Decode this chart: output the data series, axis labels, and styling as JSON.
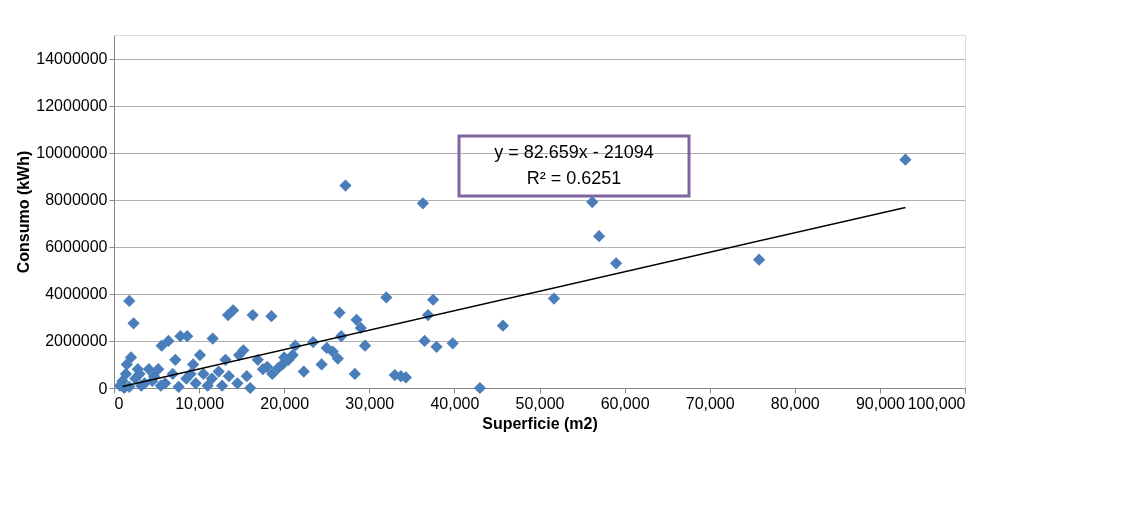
{
  "chart_data": {
    "type": "scatter",
    "xlabel": "Superficie (m2)",
    "ylabel": "Consumo (kWh)",
    "annotations": [
      "y = 82.659x - 21094",
      "R² = 0.6251"
    ],
    "xlim": [
      0,
      100000
    ],
    "xticks": [
      0,
      {
        "value": 10000,
        "label": "10,000"
      },
      {
        "value": 20000,
        "label": "20,000"
      },
      {
        "value": 30000,
        "label": "30,000"
      },
      {
        "value": 40000,
        "label": "40,000"
      },
      {
        "value": 50000,
        "label": "50,000"
      },
      {
        "value": 60000,
        "label": "60,000"
      },
      {
        "value": 70000,
        "label": "70,000"
      },
      {
        "value": 80000,
        "label": "80,000"
      },
      {
        "value": 90000,
        "label": "90,000"
      },
      {
        "value": 100000,
        "label": "100,000"
      }
    ],
    "ylim": [
      0,
      15000000
    ],
    "yticks": [
      0,
      2000000,
      4000000,
      6000000,
      8000000,
      10000000,
      12000000,
      14000000
    ],
    "grid": "y",
    "marker": "diamond",
    "series": [
      {
        "color": "#4a7ebb",
        "x": [
          93000,
          75800,
          59000,
          57000,
          56200,
          51700,
          45700,
          43000,
          39800,
          37900,
          37500,
          36900,
          36500,
          36300,
          34300,
          33700,
          33000,
          32000,
          29500,
          29000,
          28500,
          28300,
          27200,
          26700,
          26500,
          26300,
          25700,
          25000,
          24400,
          23400,
          22300,
          21300,
          21000,
          20500,
          19800,
          19300,
          18500,
          18600,
          18000,
          16900,
          16300,
          16000,
          15600,
          15200,
          14700,
          14500,
          14000,
          13400,
          13100,
          12700,
          12300,
          11600,
          11000,
          10500,
          10100,
          9600,
          9300,
          8600,
          7800,
          7600,
          7200,
          6900,
          6400,
          6000,
          5600,
          5200,
          4700,
          4100,
          3600,
          3000,
          2300,
          1800,
          2000,
          1500,
          1000,
          700,
          1200,
          2500,
          1800,
          3200,
          4500,
          5500,
          8500,
          11500,
          13500,
          17500,
          20000,
          9000,
          2800,
          1400
        ],
        "values": [
          9700000,
          5450000,
          5300000,
          6450000,
          7900000,
          3800000,
          2650000,
          0,
          1900000,
          1750000,
          3750000,
          3100000,
          2000000,
          7850000,
          450000,
          500000,
          550000,
          3850000,
          1800000,
          2550000,
          2900000,
          600000,
          8600000,
          2200000,
          3200000,
          1250000,
          1550000,
          1700000,
          1000000,
          1950000,
          700000,
          1800000,
          1400000,
          1200000,
          1000000,
          850000,
          3050000,
          600000,
          900000,
          1200000,
          3100000,
          0,
          500000,
          1600000,
          1400000,
          200000,
          3300000,
          3100000,
          1200000,
          100000,
          700000,
          2100000,
          100000,
          600000,
          1400000,
          200000,
          1000000,
          2200000,
          2200000,
          50000,
          1200000,
          600000,
          2000000,
          200000,
          1800000,
          800000,
          500000,
          800000,
          200000,
          600000,
          2750000,
          3700000,
          1300000,
          1000000,
          300000,
          100000,
          0,
          400000,
          50000,
          100000,
          300000,
          100000,
          400000,
          400000,
          500000,
          800000,
          1300000,
          600000,
          800000,
          600000
        ]
      },
      {
        "type": "line",
        "color": "#000000",
        "marker": "none",
        "line_style": "solid",
        "x": [
          1000,
          93000
        ],
        "values": [
          60000,
          7670000
        ]
      }
    ]
  }
}
